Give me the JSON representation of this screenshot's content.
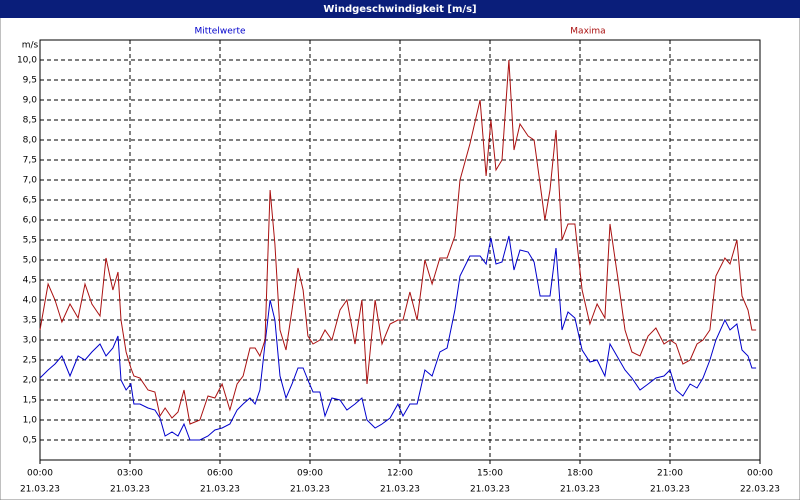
{
  "chart_data": {
    "type": "line",
    "title": "Windgeschwindigkeit [m/s]",
    "y_unit": "m/s",
    "x": [
      0,
      0.27,
      0.5,
      0.73,
      1,
      1.27,
      1.5,
      1.73,
      2,
      2.2,
      2.43,
      2.6,
      2.7,
      2.87,
      3.03,
      3.13,
      3.33,
      3.6,
      3.83,
      4,
      4.17,
      4.4,
      4.6,
      4.8,
      5,
      5.33,
      5.6,
      5.83,
      6.07,
      6.33,
      6.57,
      6.77,
      7,
      7.17,
      7.33,
      7.5,
      7.67,
      7.83,
      8,
      8.2,
      8.4,
      8.6,
      8.77,
      8.93,
      9.1,
      9.33,
      9.5,
      9.73,
      10,
      10.23,
      10.5,
      10.73,
      10.9,
      11.17,
      11.4,
      11.67,
      11.93,
      12.1,
      12.33,
      12.57,
      12.83,
      13.07,
      13.33,
      13.57,
      13.83,
      14,
      14.33,
      14.67,
      14.87,
      15.03,
      15.2,
      15.4,
      15.63,
      15.8,
      16,
      16.27,
      16.47,
      16.67,
      16.83,
      17,
      17.2,
      17.4,
      17.6,
      17.83,
      18.07,
      18.33,
      18.57,
      18.83,
      19,
      19.27,
      19.5,
      19.73,
      20,
      20.27,
      20.53,
      20.8,
      21,
      21.2,
      21.43,
      21.67,
      21.9,
      22.1,
      22.33,
      22.53,
      22.83,
      23,
      23.23,
      23.4,
      23.6,
      23.73,
      23.87
    ],
    "series": [
      {
        "name": "Mittelwerte",
        "color": "#0000cc",
        "values": [
          2.05,
          2.25,
          2.4,
          2.6,
          2.1,
          2.6,
          2.5,
          2.7,
          2.9,
          2.6,
          2.8,
          3.1,
          2.0,
          1.75,
          1.9,
          1.4,
          1.4,
          1.3,
          1.25,
          1.05,
          0.6,
          0.7,
          0.6,
          0.9,
          0.5,
          0.5,
          0.6,
          0.75,
          0.8,
          0.9,
          1.25,
          1.4,
          1.55,
          1.4,
          1.75,
          2.9,
          4.0,
          3.5,
          2.1,
          1.55,
          1.9,
          2.3,
          2.3,
          2.0,
          1.7,
          1.7,
          1.1,
          1.55,
          1.5,
          1.25,
          1.4,
          1.55,
          1.0,
          0.8,
          0.9,
          1.05,
          1.4,
          1.1,
          1.4,
          1.4,
          2.25,
          2.1,
          2.7,
          2.8,
          3.75,
          4.6,
          5.1,
          5.1,
          4.9,
          5.55,
          4.9,
          4.95,
          5.6,
          4.75,
          5.25,
          5.2,
          4.95,
          4.1,
          4.1,
          4.1,
          5.3,
          3.25,
          3.7,
          3.55,
          2.75,
          2.45,
          2.5,
          2.1,
          2.9,
          2.55,
          2.25,
          2.05,
          1.75,
          1.9,
          2.05,
          2.1,
          2.25,
          1.75,
          1.6,
          1.9,
          1.8,
          2.05,
          2.5,
          3.0,
          3.5,
          3.25,
          3.4,
          2.75,
          2.6,
          2.3,
          2.3
        ]
      },
      {
        "name": "Maxima",
        "color": "#aa1111",
        "values": [
          3.25,
          4.4,
          4.0,
          3.45,
          3.9,
          3.55,
          4.4,
          3.9,
          3.6,
          5.05,
          4.25,
          4.7,
          3.5,
          2.7,
          2.3,
          2.1,
          2.05,
          1.75,
          1.7,
          1.1,
          1.3,
          1.05,
          1.2,
          1.75,
          0.9,
          1.0,
          1.6,
          1.55,
          1.9,
          1.25,
          1.9,
          2.1,
          2.8,
          2.8,
          2.6,
          3.0,
          6.75,
          5.4,
          3.25,
          2.75,
          3.75,
          4.8,
          4.25,
          3.1,
          2.9,
          3.0,
          3.25,
          3.0,
          3.75,
          4.0,
          2.9,
          4.0,
          1.9,
          4.0,
          2.9,
          3.4,
          3.5,
          3.5,
          4.2,
          3.5,
          5.0,
          4.4,
          5.05,
          5.05,
          5.6,
          7.0,
          7.9,
          9.0,
          7.1,
          8.5,
          7.25,
          7.5,
          10.0,
          7.75,
          8.4,
          8.1,
          8.0,
          6.9,
          6.0,
          6.75,
          8.25,
          5.5,
          5.9,
          5.9,
          4.25,
          3.4,
          3.9,
          3.55,
          5.9,
          4.5,
          3.25,
          2.7,
          2.6,
          3.1,
          3.3,
          2.9,
          3.0,
          2.9,
          2.4,
          2.5,
          2.9,
          3.0,
          3.25,
          4.6,
          5.05,
          4.9,
          5.5,
          4.1,
          3.75,
          3.25,
          3.25
        ]
      }
    ],
    "xlim": [
      0,
      24
    ],
    "xticks": [
      {
        "value": 0,
        "label": "00:00"
      },
      {
        "value": 3,
        "label": "03:00"
      },
      {
        "value": 6,
        "label": "06:00"
      },
      {
        "value": 9,
        "label": "09:00"
      },
      {
        "value": 12,
        "label": "12:00"
      },
      {
        "value": 15,
        "label": "15:00"
      },
      {
        "value": 18,
        "label": "18:00"
      },
      {
        "value": 21,
        "label": "21:00"
      },
      {
        "value": 24,
        "label": "00:00"
      }
    ],
    "xtick_dates": [
      "21.03.23",
      "21.03.23",
      "21.03.23",
      "21.03.23",
      "21.03.23",
      "21.03.23",
      "21.03.23",
      "21.03.23",
      "22.03.23"
    ],
    "ylim": [
      0,
      10.5
    ],
    "yticks": [
      {
        "value": 0.5,
        "label": "0,5"
      },
      {
        "value": 1,
        "label": "1,0"
      },
      {
        "value": 1.5,
        "label": "1,5"
      },
      {
        "value": 2,
        "label": "2,0"
      },
      {
        "value": 2.5,
        "label": "2,5"
      },
      {
        "value": 3,
        "label": "3,0"
      },
      {
        "value": 3.5,
        "label": "3,5"
      },
      {
        "value": 4,
        "label": "4,0"
      },
      {
        "value": 4.5,
        "label": "4,5"
      },
      {
        "value": 5,
        "label": "5,0"
      },
      {
        "value": 5.5,
        "label": "5,5"
      },
      {
        "value": 6,
        "label": "6,0"
      },
      {
        "value": 6.5,
        "label": "6,5"
      },
      {
        "value": 7,
        "label": "7,0"
      },
      {
        "value": 7.5,
        "label": "7,5"
      },
      {
        "value": 8,
        "label": "8,0"
      },
      {
        "value": 8.5,
        "label": "8,5"
      },
      {
        "value": 9,
        "label": "9,0"
      },
      {
        "value": 9.5,
        "label": "9,5"
      },
      {
        "value": 10,
        "label": "10,0"
      }
    ],
    "grid": true
  }
}
